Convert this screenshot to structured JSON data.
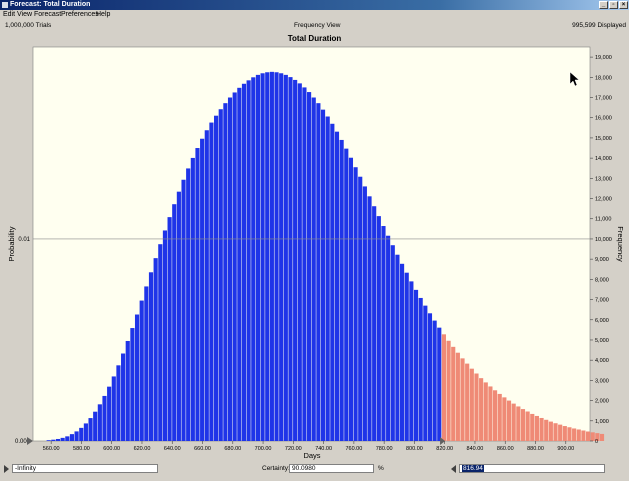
{
  "window": {
    "title": "Forecast: Total Duration",
    "controls": [
      "_",
      "▫",
      "×"
    ]
  },
  "menu": [
    "Edit",
    "View",
    "Forecast",
    "Preferences",
    "Help"
  ],
  "info": {
    "trials": "1,000,000 Trials",
    "view": "Frequency View",
    "displayed": "995,599 Displayed"
  },
  "colors": {
    "bar_blue": "#1f34e8",
    "bar_red": "#ef8a76",
    "plot_bg": "#fffff0"
  },
  "chart_data": {
    "type": "bar",
    "title": "Total Duration",
    "xlabel": "Days",
    "ylabel_left": "Probability",
    "ylabel_right": "Frequency",
    "xlim": [
      548,
      916
    ],
    "xticks": [
      "560.00",
      "580.00",
      "600.00",
      "620.00",
      "640.00",
      "660.00",
      "680.00",
      "700.00",
      "720.00",
      "740.00",
      "760.00",
      "780.00",
      "800.00",
      "820.00",
      "840.00",
      "860.00",
      "880.00",
      "900.00"
    ],
    "left_ticks": [
      "0.000",
      "0.01"
    ],
    "right_ticks": [
      "0",
      "1,000",
      "2,000",
      "3,000",
      "4,000",
      "5,000",
      "6,000",
      "7,000",
      "8,000",
      "9,000",
      "10,000",
      "11,000",
      "12,000",
      "13,000",
      "14,000",
      "15,000",
      "16,000",
      "17,000",
      "18,000",
      "19,000"
    ],
    "ylim": [
      0,
      19500
    ],
    "bin_start": 557,
    "bin_width": 3.072,
    "certainty_threshold": 816.94,
    "values": [
      40,
      65,
      100,
      155,
      230,
      340,
      475,
      650,
      870,
      1135,
      1450,
      1815,
      2230,
      2690,
      3195,
      3745,
      4330,
      4950,
      5590,
      6260,
      6950,
      7650,
      8350,
      9050,
      9740,
      10420,
      11080,
      11720,
      12340,
      12930,
      13490,
      14010,
      14500,
      14960,
      15380,
      15760,
      16100,
      16420,
      16720,
      17000,
      17250,
      17480,
      17680,
      17850,
      18000,
      18120,
      18200,
      18250,
      18270,
      18250,
      18200,
      18120,
      18010,
      17870,
      17700,
      17500,
      17270,
      17000,
      16720,
      16400,
      16060,
      15700,
      15310,
      14900,
      14470,
      14020,
      13550,
      13080,
      12600,
      12110,
      11620,
      11130,
      10640,
      10160,
      9690,
      9220,
      8770,
      8330,
      7900,
      7480,
      7080,
      6700,
      6320,
      5960,
      5610,
      5280,
      4960,
      4660,
      4370,
      4090,
      3830,
      3580,
      3340,
      3110,
      2900,
      2700,
      2510,
      2330,
      2160,
      2000,
      1850,
      1710,
      1580,
      1460,
      1340,
      1240,
      1140,
      1050,
      960,
      880,
      810,
      740,
      680,
      620,
      570,
      520,
      470,
      430,
      390,
      350
    ]
  },
  "bottom": {
    "left_value": "-Infinity",
    "certainty_label": "Certainty:",
    "certainty_value": "90.0980",
    "certainty_unit": "%",
    "right_value": "816.94"
  }
}
